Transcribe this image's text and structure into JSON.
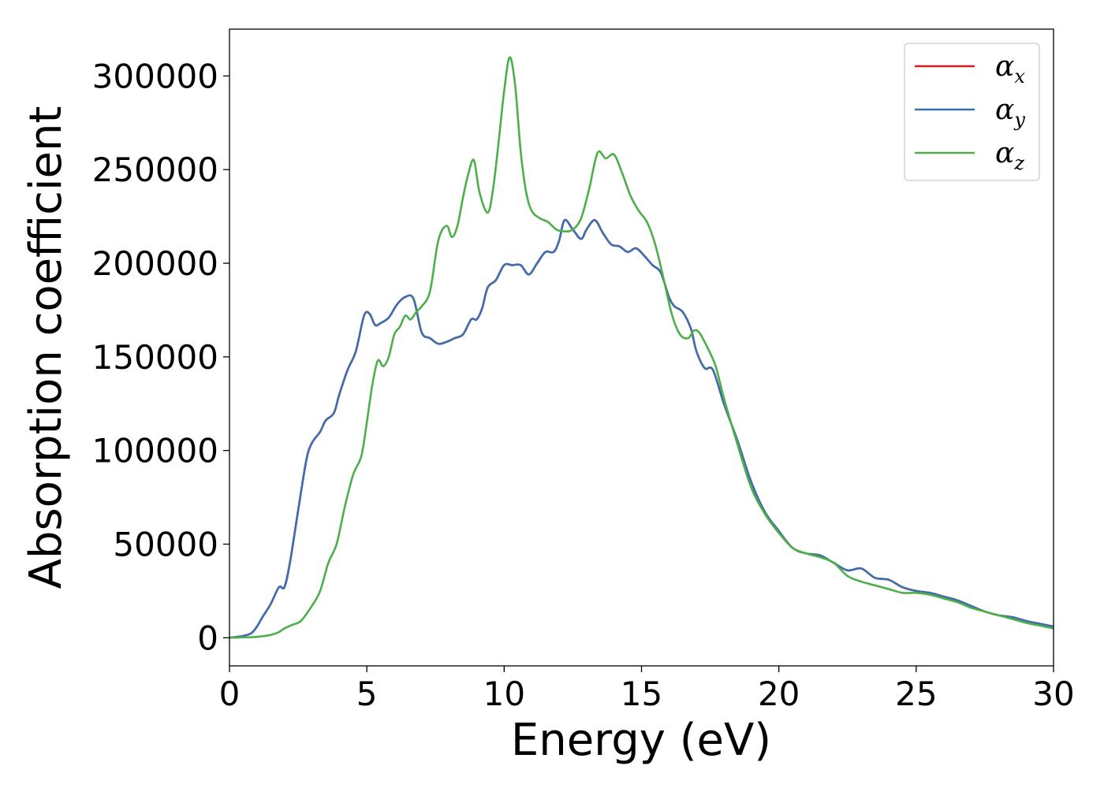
{
  "chart_data": {
    "type": "line",
    "xlabel": "Energy (eV)",
    "ylabel": "Absorption coefficient",
    "xlim": [
      0,
      30
    ],
    "ylim": [
      -15000,
      325000
    ],
    "xticks": [
      "0",
      "5",
      "10",
      "15",
      "20",
      "25",
      "30"
    ],
    "yticks": [
      "0",
      "50000",
      "100000",
      "150000",
      "200000",
      "250000",
      "300000"
    ],
    "grid": false,
    "legend_position": "top-right",
    "series": [
      {
        "name": "αx",
        "label_base": "α",
        "label_sub": "x",
        "color": "#e41a1c",
        "x": [
          0,
          0.5,
          0.8,
          1.0,
          1.2,
          1.5,
          1.8,
          2.0,
          2.2,
          2.5,
          2.8,
          3.0,
          3.3,
          3.5,
          3.8,
          4.0,
          4.3,
          4.6,
          4.9,
          5.1,
          5.3,
          5.5,
          5.8,
          6.1,
          6.4,
          6.7,
          7.0,
          7.3,
          7.6,
          7.9,
          8.2,
          8.5,
          8.8,
          9.0,
          9.2,
          9.4,
          9.7,
          10.0,
          10.3,
          10.6,
          10.9,
          11.2,
          11.5,
          11.8,
          12.0,
          12.2,
          12.5,
          12.8,
          13.0,
          13.3,
          13.6,
          13.9,
          14.2,
          14.5,
          14.8,
          15.1,
          15.4,
          15.7,
          16.0,
          16.2,
          16.5,
          16.8,
          17.0,
          17.3,
          17.6,
          18.0,
          18.5,
          19.0,
          19.5,
          20.0,
          20.5,
          21.0,
          21.5,
          22.0,
          22.5,
          23.0,
          23.5,
          24.0,
          24.5,
          25.0,
          25.5,
          26.0,
          26.5,
          27.0,
          27.5,
          28.0,
          28.5,
          29.0,
          29.5,
          30.0
        ],
        "y": [
          0,
          1000,
          2500,
          6000,
          11000,
          18000,
          27000,
          27000,
          40000,
          68000,
          95000,
          104000,
          110000,
          116000,
          120000,
          130000,
          143000,
          153000,
          172000,
          173000,
          167000,
          168000,
          171000,
          178000,
          182000,
          181000,
          163000,
          160000,
          157000,
          158000,
          160000,
          162000,
          170000,
          170000,
          176000,
          187000,
          191000,
          199000,
          199000,
          199000,
          194000,
          200000,
          206000,
          206000,
          212000,
          223000,
          218000,
          213000,
          218000,
          223000,
          216000,
          210000,
          209000,
          206000,
          208000,
          204000,
          199000,
          195000,
          182000,
          177000,
          174000,
          165000,
          153000,
          144000,
          143000,
          125000,
          105000,
          83000,
          67000,
          57000,
          48000,
          45000,
          44000,
          40000,
          36000,
          37000,
          32000,
          31000,
          27000,
          25000,
          24000,
          22000,
          20000,
          17000,
          14000,
          12000,
          11000,
          9000,
          7500,
          6000
        ]
      },
      {
        "name": "αy",
        "label_base": "α",
        "label_sub": "y",
        "color": "#3c6fb0",
        "x": [
          0,
          0.5,
          0.8,
          1.0,
          1.2,
          1.5,
          1.8,
          2.0,
          2.2,
          2.5,
          2.8,
          3.0,
          3.3,
          3.5,
          3.8,
          4.0,
          4.3,
          4.6,
          4.9,
          5.1,
          5.3,
          5.5,
          5.8,
          6.1,
          6.4,
          6.7,
          7.0,
          7.3,
          7.6,
          7.9,
          8.2,
          8.5,
          8.8,
          9.0,
          9.2,
          9.4,
          9.7,
          10.0,
          10.3,
          10.6,
          10.9,
          11.2,
          11.5,
          11.8,
          12.0,
          12.2,
          12.5,
          12.8,
          13.0,
          13.3,
          13.6,
          13.9,
          14.2,
          14.5,
          14.8,
          15.1,
          15.4,
          15.7,
          16.0,
          16.2,
          16.5,
          16.8,
          17.0,
          17.3,
          17.6,
          18.0,
          18.5,
          19.0,
          19.5,
          20.0,
          20.5,
          21.0,
          21.5,
          22.0,
          22.5,
          23.0,
          23.5,
          24.0,
          24.5,
          25.0,
          25.5,
          26.0,
          26.5,
          27.0,
          27.5,
          28.0,
          28.5,
          29.0,
          29.5,
          30.0
        ],
        "y": [
          0,
          1000,
          2500,
          6000,
          11000,
          18000,
          27000,
          27000,
          40000,
          68000,
          95000,
          104000,
          110000,
          116000,
          120000,
          130000,
          143000,
          153000,
          172000,
          173000,
          167000,
          168000,
          171000,
          178000,
          182000,
          181000,
          163000,
          160000,
          157000,
          158000,
          160000,
          162000,
          170000,
          170000,
          176000,
          187000,
          191000,
          199000,
          199000,
          199000,
          194000,
          200000,
          206000,
          206000,
          212000,
          223000,
          218000,
          213000,
          218000,
          223000,
          216000,
          210000,
          209000,
          206000,
          208000,
          204000,
          199000,
          195000,
          182000,
          177000,
          174000,
          165000,
          153000,
          144000,
          143000,
          125000,
          105000,
          83000,
          67000,
          57000,
          48000,
          45000,
          44000,
          40000,
          36000,
          37000,
          32000,
          31000,
          27000,
          25000,
          24000,
          22000,
          20000,
          17000,
          14000,
          12000,
          11000,
          9000,
          7500,
          6000
        ]
      },
      {
        "name": "αz",
        "label_base": "α",
        "label_sub": "z",
        "color": "#4daf4a",
        "x": [
          0,
          0.5,
          1.0,
          1.5,
          1.8,
          2.0,
          2.3,
          2.6,
          3.0,
          3.3,
          3.6,
          3.9,
          4.2,
          4.5,
          4.8,
          5.0,
          5.2,
          5.4,
          5.6,
          5.8,
          6.0,
          6.2,
          6.4,
          6.6,
          6.8,
          7.0,
          7.3,
          7.6,
          7.9,
          8.1,
          8.3,
          8.5,
          8.7,
          8.9,
          9.1,
          9.4,
          9.6,
          9.8,
          10.0,
          10.2,
          10.4,
          10.6,
          10.8,
          11.0,
          11.3,
          11.6,
          11.9,
          12.2,
          12.5,
          12.8,
          13.1,
          13.4,
          13.7,
          14.0,
          14.3,
          14.6,
          14.9,
          15.2,
          15.5,
          15.8,
          16.1,
          16.4,
          16.7,
          16.9,
          17.1,
          17.4,
          17.7,
          18.0,
          18.5,
          19.0,
          19.5,
          20.0,
          20.5,
          21.0,
          21.5,
          22.0,
          22.5,
          23.0,
          23.5,
          24.0,
          24.5,
          25.0,
          25.5,
          26.0,
          26.5,
          27.0,
          27.5,
          28.0,
          28.5,
          29.0,
          29.5,
          30.0
        ],
        "y": [
          0,
          200,
          500,
          1500,
          3000,
          5000,
          7000,
          9000,
          17000,
          25000,
          40000,
          50000,
          70000,
          87000,
          97000,
          115000,
          135000,
          148000,
          145000,
          150000,
          162000,
          166000,
          172000,
          170000,
          174000,
          177000,
          185000,
          212000,
          220000,
          214000,
          220000,
          235000,
          248000,
          255000,
          238000,
          227000,
          240000,
          265000,
          292000,
          310000,
          295000,
          260000,
          238000,
          228000,
          224000,
          222000,
          218000,
          217000,
          218000,
          224000,
          240000,
          259000,
          256000,
          258000,
          248000,
          236000,
          228000,
          222000,
          210000,
          192000,
          173000,
          162000,
          160000,
          164000,
          163000,
          155000,
          145000,
          128000,
          103000,
          80000,
          66000,
          56000,
          48000,
          45000,
          43000,
          40000,
          33000,
          30000,
          28000,
          26000,
          24000,
          24000,
          23000,
          21000,
          19000,
          16000,
          14000,
          12000,
          10000,
          8000,
          6500,
          5000
        ]
      }
    ]
  }
}
